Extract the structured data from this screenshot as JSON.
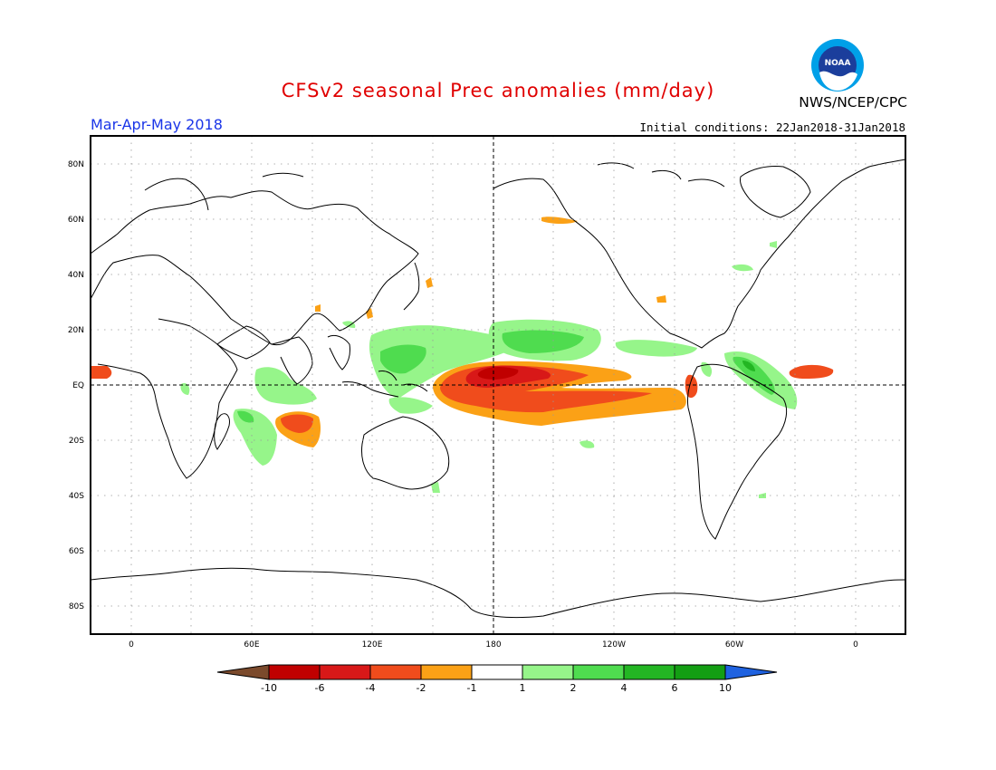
{
  "header": {
    "title": "CFSv2 seasonal Prec anomalies (mm/day)",
    "season": "Mar-Apr-May 2018",
    "initial_conditions": "Initial conditions: 22Jan2018-31Jan2018",
    "agency": "NWS/NCEP/CPC",
    "logo_text": "NOAA"
  },
  "map": {
    "projection": "equirectangular",
    "lat_labels": [
      "80N",
      "60N",
      "40N",
      "20N",
      "EQ",
      "20S",
      "40S",
      "60S",
      "80S"
    ],
    "lon_labels": [
      "0",
      "60E",
      "120E",
      "180",
      "120W",
      "60W",
      "0"
    ],
    "reference_lines": [
      "Equator",
      "Dateline (180)"
    ]
  },
  "colorbar": {
    "tick_labels": [
      "-10",
      "-6",
      "-4",
      "-2",
      "-1",
      "1",
      "2",
      "4",
      "6",
      "10"
    ],
    "colors": [
      "#7b4a2c",
      "#c00000",
      "#d81818",
      "#f04c1c",
      "#fba116",
      "#ffffff",
      "#96f58a",
      "#4fdc4f",
      "#23b623",
      "#139e13",
      "#1f62e0"
    ]
  }
}
